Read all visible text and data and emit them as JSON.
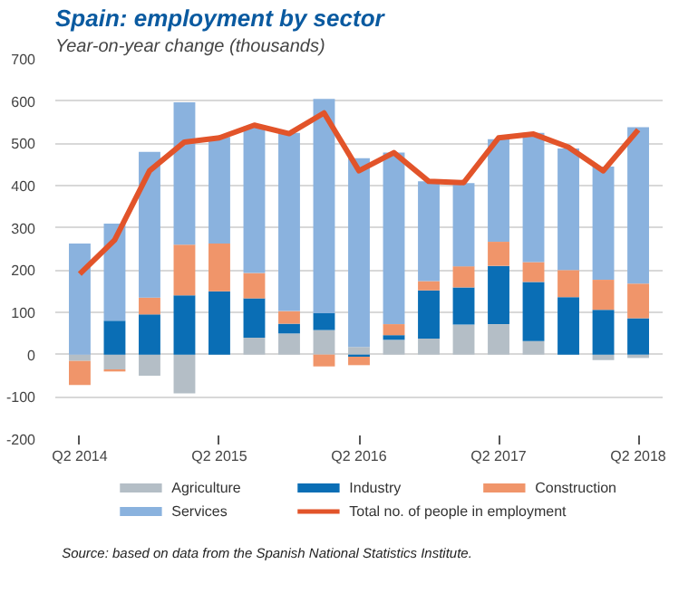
{
  "chart_data": {
    "type": "bar",
    "title": "Spain: employment by sector",
    "subtitle": "Year-on-year change (thousands)",
    "categories": [
      "Q2 2014",
      null,
      null,
      null,
      "Q2 2015",
      null,
      null,
      null,
      "Q2 2016",
      null,
      null,
      null,
      "Q2 2017",
      null,
      null,
      null,
      "Q2 2018"
    ],
    "stacked": true,
    "series": [
      {
        "name": "Agriculture",
        "color": "#b4bec6",
        "values": [
          -15,
          -35,
          -50,
          -92,
          0,
          40,
          50,
          58,
          18,
          35,
          38,
          71,
          72,
          32,
          null,
          -13,
          -8
        ]
      },
      {
        "name": "Industry",
        "color": "#0a6eb5",
        "values": [
          0,
          80,
          95,
          140,
          150,
          93,
          23,
          40,
          -5,
          11,
          114,
          88,
          138,
          140,
          136,
          106,
          86
        ]
      },
      {
        "name": "Construction",
        "color": "#f0956a",
        "values": [
          -57,
          -5,
          40,
          120,
          113,
          60,
          30,
          -28,
          -20,
          26,
          22,
          50,
          57,
          47,
          64,
          71,
          82
        ]
      },
      {
        "name": "Services",
        "color": "#8ab2de",
        "values": [
          263,
          230,
          345,
          337,
          252,
          347,
          422,
          507,
          447,
          406,
          236,
          197,
          243,
          306,
          288,
          268,
          370
        ]
      },
      {
        "name": "Total no. of people in employment",
        "color": "#e2542a",
        "type": "line",
        "values": [
          191,
          271,
          435,
          503,
          513,
          543,
          523,
          572,
          435,
          478,
          410,
          407,
          513,
          522,
          491,
          435,
          532
        ]
      }
    ],
    "ylim": [
      -200,
      700
    ],
    "yticks": [
      -200,
      -100,
      0,
      100,
      200,
      300,
      400,
      500,
      600,
      700
    ],
    "grid": "y",
    "legend": "bottom",
    "annotations": [
      "Source: based on data from the Spanish National Statistics Institute."
    ]
  }
}
